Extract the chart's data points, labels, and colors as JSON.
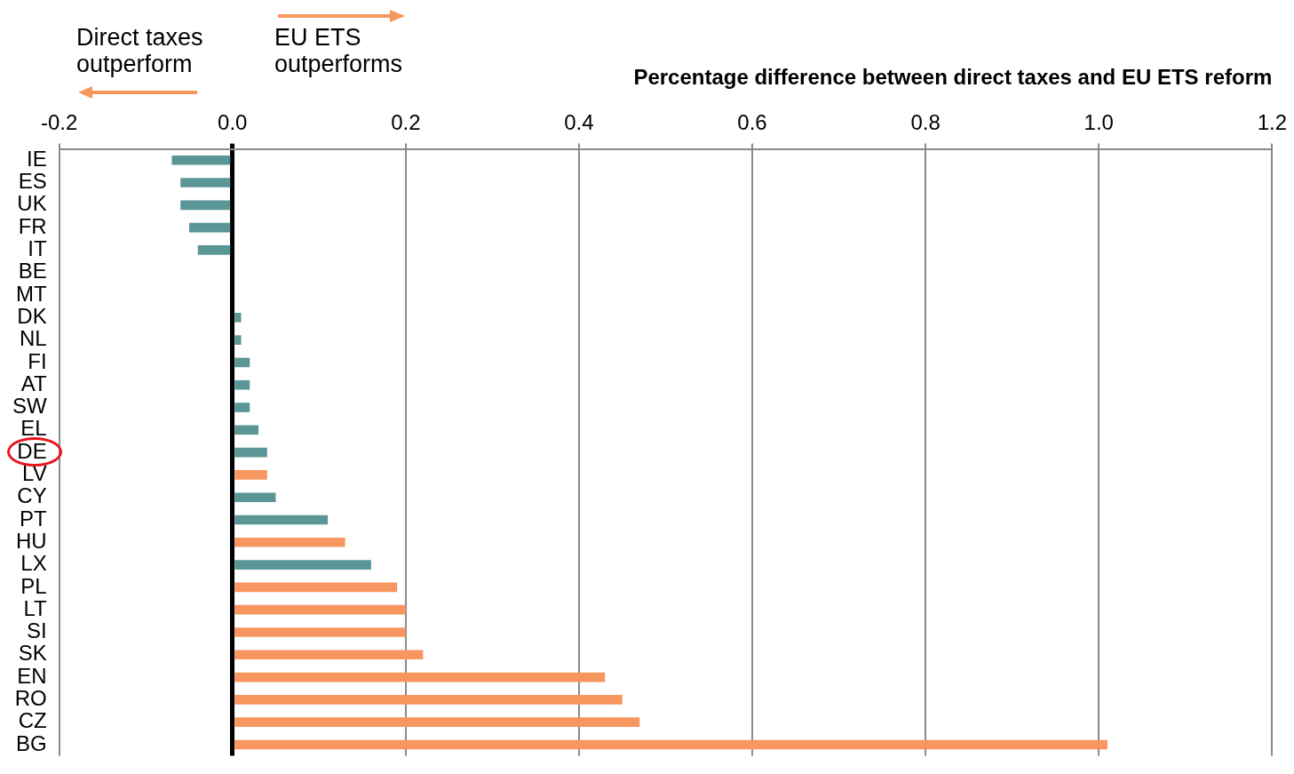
{
  "chart_data": {
    "type": "bar",
    "orientation": "horizontal",
    "xlabel": "Percentage difference between direct taxes and EU ETS reform",
    "categories": [
      "IE",
      "ES",
      "UK",
      "FR",
      "IT",
      "BE",
      "MT",
      "DK",
      "NL",
      "FI",
      "AT",
      "SW",
      "EL",
      "DE",
      "LV",
      "CY",
      "PT",
      "HU",
      "LX",
      "PL",
      "LT",
      "SI",
      "SK",
      "EN",
      "RO",
      "CZ",
      "BG"
    ],
    "values": [
      -0.07,
      -0.06,
      -0.06,
      -0.05,
      -0.04,
      0,
      0,
      0.01,
      0.01,
      0.02,
      0.02,
      0.02,
      0.03,
      0.04,
      0.04,
      0.05,
      0.11,
      0.13,
      0.16,
      0.19,
      0.2,
      0.2,
      0.22,
      0.43,
      0.45,
      0.47,
      1.01
    ],
    "colors": [
      "#5a9696",
      "#5a9696",
      "#5a9696",
      "#5a9696",
      "#5a9696",
      "#5a9696",
      "#5a9696",
      "#5a9696",
      "#5a9696",
      "#5a9696",
      "#5a9696",
      "#5a9696",
      "#5a9696",
      "#5a9696",
      "#f7965e",
      "#5a9696",
      "#5a9696",
      "#f7965e",
      "#5a9696",
      "#f7965e",
      "#f7965e",
      "#f7965e",
      "#f7965e",
      "#f7965e",
      "#f7965e",
      "#f7965e",
      "#f7965e"
    ],
    "xlim": [
      -0.2,
      1.2
    ],
    "xticks": [
      -0.2,
      {
        "value": 0,
        "label": "0.0"
      },
      0.2,
      0.4,
      0.6,
      0.8,
      {
        "value": 1,
        "label": "1.0"
      },
      1.2
    ],
    "grid": "x",
    "annotations": [
      "Direct taxes outperform",
      "EU ETS outperforms"
    ]
  }
}
